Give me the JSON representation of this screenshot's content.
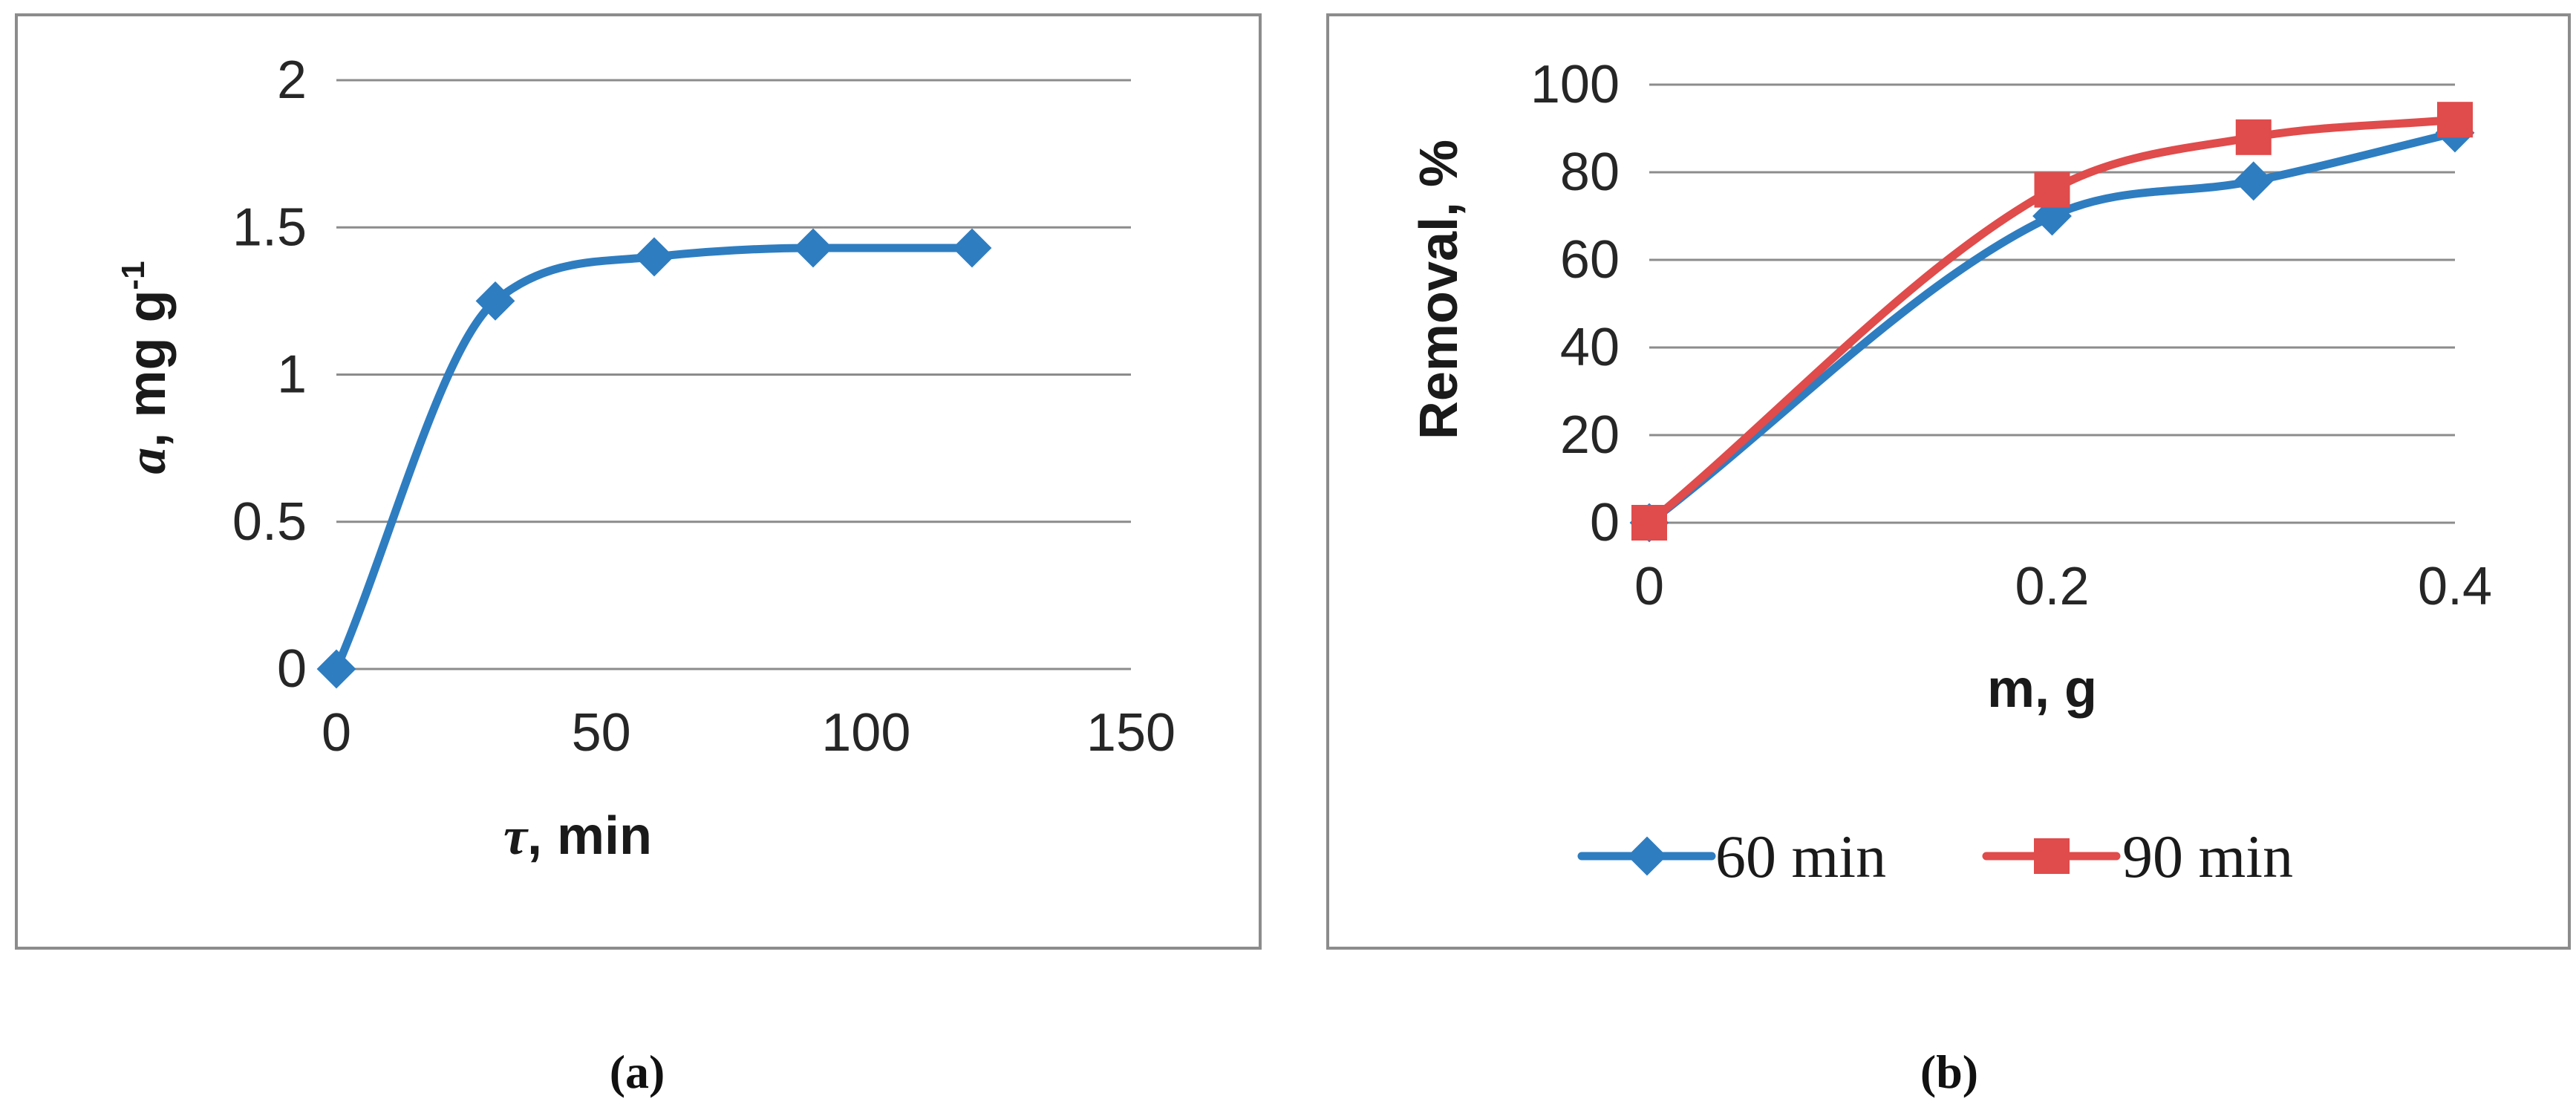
{
  "chart_data": [
    {
      "type": "line",
      "title": "",
      "caption": "(a)",
      "xlabel_symbol": "τ",
      "xlabel_rest": ", min",
      "ylabel_symbol": "a",
      "ylabel_rest": ", mg g",
      "ylabel_sup": "-1",
      "xlim": [
        0,
        150
      ],
      "ylim": [
        0,
        2
      ],
      "xticks": [
        "0",
        "50",
        "100",
        "150"
      ],
      "yticks": [
        "0",
        "0.5",
        "1",
        "1.5",
        "2"
      ],
      "grid": true,
      "series": [
        {
          "name": "",
          "color": "#2e7dc1",
          "marker": "diamond",
          "x": [
            0,
            30,
            60,
            90,
            120
          ],
          "y": [
            0,
            1.25,
            1.4,
            1.43,
            1.43
          ]
        }
      ]
    },
    {
      "type": "line",
      "title": "",
      "caption": "(b)",
      "xlabel": "m, g",
      "ylabel": "Removal, %",
      "xlim": [
        0,
        0.4
      ],
      "ylim": [
        0,
        100
      ],
      "xticks": [
        "0",
        "0.2",
        "0.4"
      ],
      "yticks": [
        "0",
        "20",
        "40",
        "60",
        "80",
        "100"
      ],
      "grid": true,
      "legend_position": "bottom",
      "series": [
        {
          "name": "60 min",
          "color": "#2e7dc1",
          "marker": "diamond",
          "x": [
            0,
            0.2,
            0.3,
            0.4
          ],
          "y": [
            0,
            70,
            78,
            89
          ]
        },
        {
          "name": "90 min",
          "color": "#e04b4b",
          "marker": "square",
          "x": [
            0,
            0.2,
            0.3,
            0.4
          ],
          "y": [
            0,
            76,
            88,
            92
          ]
        }
      ]
    }
  ]
}
